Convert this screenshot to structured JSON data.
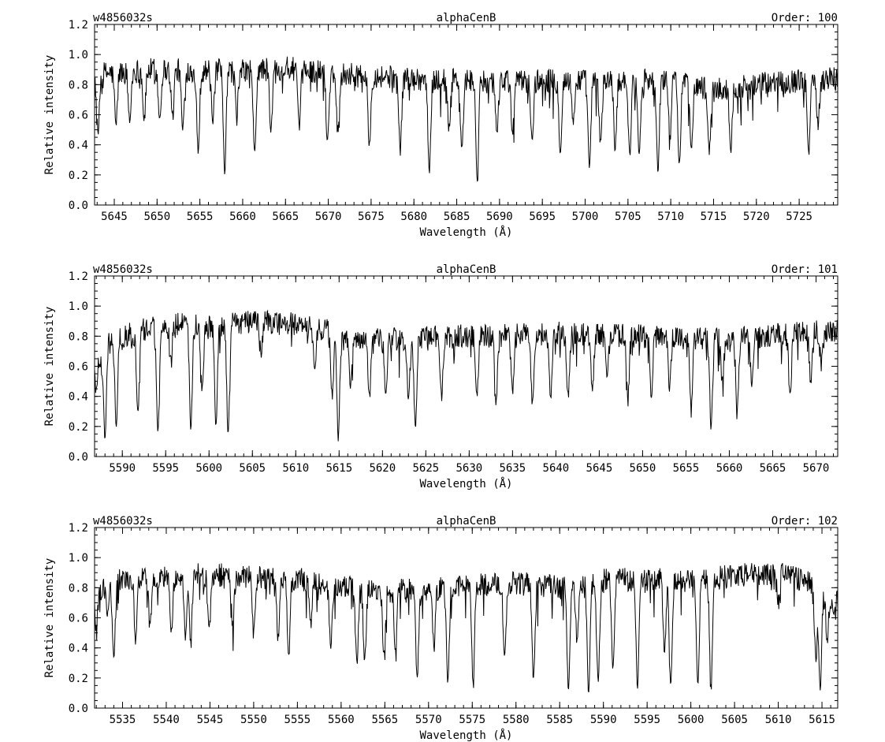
{
  "chart_data": [
    {
      "type": "line",
      "header_left": "w4856032s",
      "header_center": "alphaCenB",
      "header_right": "Order: 100",
      "xlabel": "Wavelength (Å)",
      "ylabel": "Relative intensity",
      "xlim": [
        5642.7,
        5729.5
      ],
      "ylim": [
        0.0,
        1.2
      ],
      "xticks": [
        5645,
        5650,
        5655,
        5660,
        5665,
        5670,
        5675,
        5680,
        5685,
        5690,
        5695,
        5700,
        5705,
        5710,
        5715,
        5720,
        5725
      ],
      "yticks": [
        0.0,
        0.2,
        0.4,
        0.6,
        0.8,
        1.0,
        1.2
      ],
      "series": [
        {
          "continuum": [
            [
              5642.7,
              0.87
            ],
            [
              5650,
              0.9
            ],
            [
              5660,
              0.89
            ],
            [
              5665,
              0.91
            ],
            [
              5670,
              0.88
            ],
            [
              5680,
              0.84
            ],
            [
              5690,
              0.82
            ],
            [
              5700,
              0.83
            ],
            [
              5710,
              0.84
            ],
            [
              5715,
              0.76
            ],
            [
              5720,
              0.8
            ],
            [
              5729.5,
              0.85
            ]
          ],
          "lines": [
            [
              5643.1,
              0.47
            ],
            [
              5645.2,
              0.53
            ],
            [
              5646.8,
              0.55
            ],
            [
              5648.5,
              0.57
            ],
            [
              5650.3,
              0.57
            ],
            [
              5651.8,
              0.58
            ],
            [
              5653.0,
              0.5
            ],
            [
              5654.8,
              0.36
            ],
            [
              5656.5,
              0.54
            ],
            [
              5657.9,
              0.21
            ],
            [
              5659.3,
              0.6
            ],
            [
              5661.4,
              0.33
            ],
            [
              5663.3,
              0.48
            ],
            [
              5666.6,
              0.5
            ],
            [
              5669.9,
              0.42
            ],
            [
              5671.1,
              0.5
            ],
            [
              5674.8,
              0.4
            ],
            [
              5678.4,
              0.36
            ],
            [
              5681.8,
              0.22
            ],
            [
              5684.1,
              0.52
            ],
            [
              5685.6,
              0.36
            ],
            [
              5687.4,
              0.17
            ],
            [
              5689.7,
              0.5
            ],
            [
              5691.5,
              0.48
            ],
            [
              5693.8,
              0.42
            ],
            [
              5697.1,
              0.36
            ],
            [
              5698.6,
              0.55
            ],
            [
              5700.5,
              0.24
            ],
            [
              5701.8,
              0.4
            ],
            [
              5703.5,
              0.38
            ],
            [
              5705.2,
              0.33
            ],
            [
              5706.3,
              0.35
            ],
            [
              5708.5,
              0.22
            ],
            [
              5709.9,
              0.48
            ],
            [
              5711.0,
              0.28
            ],
            [
              5712.4,
              0.39
            ],
            [
              5714.5,
              0.35
            ],
            [
              5717.0,
              0.37
            ],
            [
              5726.1,
              0.33
            ],
            [
              5727.2,
              0.55
            ]
          ]
        }
      ]
    },
    {
      "type": "line",
      "header_left": "w4856032s",
      "header_center": "alphaCenB",
      "header_right": "Order: 101",
      "xlabel": "Wavelength (Å)",
      "ylabel": "Relative intensity",
      "xlim": [
        5586.8,
        5672.5
      ],
      "ylim": [
        0.0,
        1.2
      ],
      "xticks": [
        5590,
        5595,
        5600,
        5605,
        5610,
        5615,
        5620,
        5625,
        5630,
        5635,
        5640,
        5645,
        5650,
        5655,
        5660,
        5665,
        5670
      ],
      "yticks": [
        0.0,
        0.2,
        0.4,
        0.6,
        0.8,
        1.0,
        1.2
      ],
      "series": [
        {
          "continuum": [
            [
              5586.8,
              0.72
            ],
            [
              5590,
              0.8
            ],
            [
              5595,
              0.88
            ],
            [
              5600,
              0.86
            ],
            [
              5605,
              0.9
            ],
            [
              5610,
              0.88
            ],
            [
              5614,
              0.84
            ],
            [
              5616,
              0.76
            ],
            [
              5620,
              0.78
            ],
            [
              5630,
              0.8
            ],
            [
              5640,
              0.82
            ],
            [
              5650,
              0.8
            ],
            [
              5660,
              0.78
            ],
            [
              5672.5,
              0.84
            ]
          ],
          "lines": [
            [
              5587.0,
              0.44
            ],
            [
              5587.6,
              0.6
            ],
            [
              5588.0,
              0.12
            ],
            [
              5589.3,
              0.2
            ],
            [
              5591.8,
              0.28
            ],
            [
              5594.1,
              0.17
            ],
            [
              5595.6,
              0.62
            ],
            [
              5597.9,
              0.19
            ],
            [
              5599.2,
              0.5
            ],
            [
              5600.8,
              0.21
            ],
            [
              5602.2,
              0.15
            ],
            [
              5606.0,
              0.68
            ],
            [
              5612.2,
              0.62
            ],
            [
              5614.2,
              0.4
            ],
            [
              5614.9,
              0.14
            ],
            [
              5616.3,
              0.5
            ],
            [
              5618.5,
              0.4
            ],
            [
              5620.4,
              0.4
            ],
            [
              5623.0,
              0.38
            ],
            [
              5623.8,
              0.19
            ],
            [
              5626.8,
              0.4
            ],
            [
              5630.9,
              0.4
            ],
            [
              5633.1,
              0.36
            ],
            [
              5635.0,
              0.42
            ],
            [
              5637.3,
              0.34
            ],
            [
              5639.4,
              0.4
            ],
            [
              5641.4,
              0.4
            ],
            [
              5644.2,
              0.44
            ],
            [
              5645.9,
              0.5
            ],
            [
              5648.3,
              0.4
            ],
            [
              5651.0,
              0.42
            ],
            [
              5653.1,
              0.48
            ],
            [
              5655.6,
              0.32
            ],
            [
              5657.9,
              0.19
            ],
            [
              5659.2,
              0.48
            ],
            [
              5660.9,
              0.3
            ],
            [
              5662.6,
              0.5
            ],
            [
              5667.0,
              0.4
            ],
            [
              5669.4,
              0.48
            ],
            [
              5670.6,
              0.62
            ]
          ]
        }
      ]
    },
    {
      "type": "line",
      "header_left": "w4856032s",
      "header_center": "alphaCenB",
      "header_right": "Order: 102",
      "xlabel": "Wavelength (Å)",
      "ylabel": "Relative intensity",
      "xlim": [
        5531.8,
        5616.8
      ],
      "ylim": [
        0.0,
        1.2
      ],
      "xticks": [
        5535,
        5540,
        5545,
        5550,
        5555,
        5560,
        5565,
        5570,
        5575,
        5580,
        5585,
        5590,
        5595,
        5600,
        5605,
        5610,
        5615
      ],
      "yticks": [
        0.0,
        0.2,
        0.4,
        0.6,
        0.8,
        1.0,
        1.2
      ],
      "series": [
        {
          "continuum": [
            [
              5531.8,
              0.78
            ],
            [
              5535,
              0.85
            ],
            [
              5540,
              0.88
            ],
            [
              5545,
              0.89
            ],
            [
              5550,
              0.87
            ],
            [
              5555,
              0.86
            ],
            [
              5560,
              0.8
            ],
            [
              5565,
              0.78
            ],
            [
              5570,
              0.78
            ],
            [
              5575,
              0.82
            ],
            [
              5580,
              0.83
            ],
            [
              5585,
              0.8
            ],
            [
              5590,
              0.85
            ],
            [
              5595,
              0.86
            ],
            [
              5600,
              0.84
            ],
            [
              5605,
              0.88
            ],
            [
              5610,
              0.9
            ],
            [
              5614,
              0.82
            ],
            [
              5616.8,
              0.74
            ]
          ],
          "lines": [
            [
              5532.0,
              0.52
            ],
            [
              5533.3,
              0.65
            ],
            [
              5534.0,
              0.34
            ],
            [
              5536.5,
              0.45
            ],
            [
              5538.2,
              0.58
            ],
            [
              5540.6,
              0.5
            ],
            [
              5542.2,
              0.46
            ],
            [
              5542.8,
              0.45
            ],
            [
              5544.9,
              0.5
            ],
            [
              5547.6,
              0.55
            ],
            [
              5550.0,
              0.55
            ],
            [
              5552.8,
              0.46
            ],
            [
              5554.0,
              0.33
            ],
            [
              5556.5,
              0.55
            ],
            [
              5558.8,
              0.42
            ],
            [
              5561.8,
              0.3
            ],
            [
              5562.7,
              0.32
            ],
            [
              5564.9,
              0.35
            ],
            [
              5566.2,
              0.42
            ],
            [
              5568.7,
              0.19
            ],
            [
              5570.6,
              0.42
            ],
            [
              5572.2,
              0.17
            ],
            [
              5575.1,
              0.16
            ],
            [
              5578.7,
              0.34
            ],
            [
              5582.0,
              0.19
            ],
            [
              5586.0,
              0.12
            ],
            [
              5587.0,
              0.44
            ],
            [
              5588.3,
              0.1
            ],
            [
              5589.4,
              0.18
            ],
            [
              5591.1,
              0.26
            ],
            [
              5593.9,
              0.13
            ],
            [
              5597.0,
              0.38
            ],
            [
              5597.7,
              0.16
            ],
            [
              5600.8,
              0.17
            ],
            [
              5602.3,
              0.15
            ],
            [
              5610.0,
              0.7
            ],
            [
              5614.3,
              0.32
            ],
            [
              5614.8,
              0.12
            ],
            [
              5615.6,
              0.46
            ],
            [
              5616.3,
              0.6
            ]
          ]
        }
      ]
    }
  ]
}
